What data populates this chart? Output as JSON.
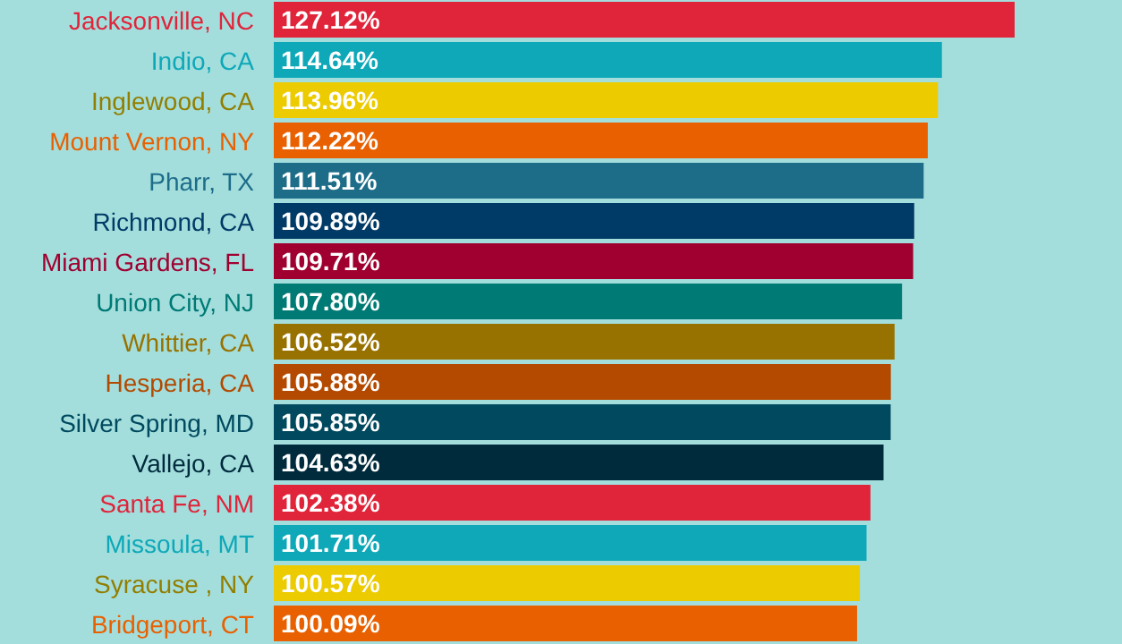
{
  "chart_data": {
    "type": "bar",
    "orientation": "horizontal",
    "categories": [
      "Jacksonville, NC",
      "Indio, CA",
      "Inglewood, CA",
      "Mount Vernon, NY",
      "Pharr, TX",
      "Richmond, CA",
      "Miami Gardens, FL",
      "Union City, NJ",
      "Whittier, CA",
      "Hesperia, CA",
      "Silver Spring, MD",
      "Vallejo, CA",
      "Santa Fe, NM",
      "Missoula, MT",
      "Syracuse , NY",
      "Bridgeport, CT"
    ],
    "values": [
      127.12,
      114.64,
      113.96,
      112.22,
      111.51,
      109.89,
      109.71,
      107.8,
      106.52,
      105.88,
      105.85,
      104.63,
      102.38,
      101.71,
      100.57,
      100.09
    ],
    "value_labels": [
      "127.12%",
      "114.64%",
      "113.96%",
      "112.22%",
      "111.51%",
      "109.89%",
      "109.71%",
      "107.80%",
      "106.52%",
      "105.88%",
      "105.85%",
      "104.63%",
      "102.38%",
      "101.71%",
      "100.57%",
      "100.09%"
    ],
    "colors": [
      "#e0243a",
      "#0ea8b8",
      "#eccb00",
      "#e86000",
      "#1d6d89",
      "#003a66",
      "#a0002f",
      "#007a74",
      "#987200",
      "#b34a00",
      "#00495e",
      "#002b3d",
      "#e0243a",
      "#0ea8b8",
      "#eccb00",
      "#e86000"
    ],
    "tick_labels": "y"
  }
}
